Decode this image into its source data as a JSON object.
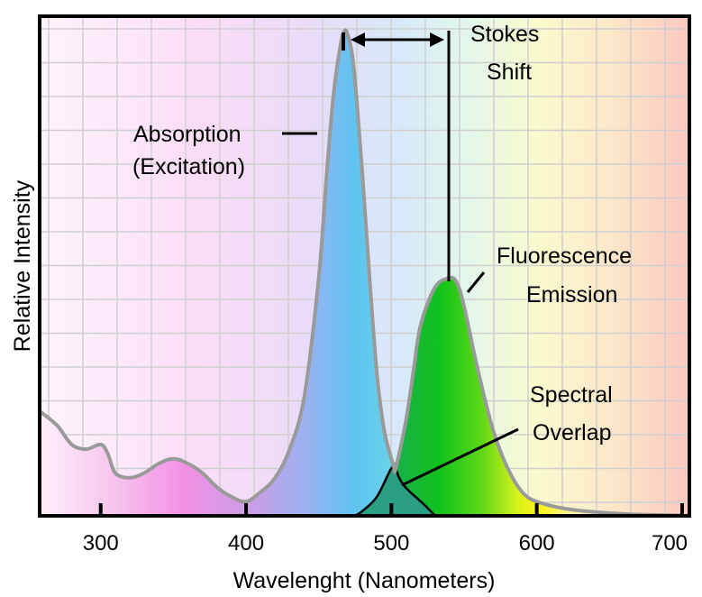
{
  "chart_data": {
    "type": "area",
    "title": "",
    "xlabel": "Wavelenght (Nanometers)",
    "ylabel": "Relative Intensity",
    "xlim": [
      258,
      705
    ],
    "ylim": [
      0,
      1.05
    ],
    "xticks": [
      300,
      400,
      500,
      600,
      700
    ],
    "grid": true,
    "series": [
      {
        "name": "Absorption (Excitation)",
        "x": [
          258,
          270,
          280,
          290,
          300,
          305,
          310,
          320,
          330,
          340,
          350,
          360,
          370,
          380,
          390,
          400,
          410,
          420,
          430,
          440,
          450,
          455,
          460,
          465,
          468,
          470,
          473,
          476,
          480,
          485,
          490,
          495,
          500,
          502,
          505
        ],
        "y": [
          0.22,
          0.19,
          0.15,
          0.14,
          0.15,
          0.13,
          0.09,
          0.08,
          0.09,
          0.11,
          0.12,
          0.11,
          0.09,
          0.06,
          0.04,
          0.03,
          0.05,
          0.08,
          0.14,
          0.25,
          0.5,
          0.7,
          0.88,
          0.99,
          1.02,
          1.01,
          0.97,
          0.88,
          0.72,
          0.5,
          0.3,
          0.18,
          0.12,
          0.1,
          0.11
        ]
      },
      {
        "name": "Fluorescence Emission",
        "x": [
          475,
          480,
          490,
          500,
          505,
          510,
          515,
          520,
          530,
          540,
          545,
          550,
          560,
          570,
          580,
          590,
          600,
          620,
          640,
          660,
          680,
          700
        ],
        "y": [
          0,
          0.01,
          0.04,
          0.1,
          0.13,
          0.2,
          0.3,
          0.4,
          0.48,
          0.5,
          0.49,
          0.44,
          0.3,
          0.18,
          0.1,
          0.05,
          0.03,
          0.015,
          0.008,
          0.004,
          0.002,
          0.001
        ]
      }
    ],
    "annotations": [
      {
        "text": "Absorption",
        "target": "Absorption (Excitation)"
      },
      {
        "text": "(Excitation)",
        "target": "Absorption (Excitation)"
      },
      {
        "text": "Stokes",
        "target": "Stokes Shift"
      },
      {
        "text": "Shift",
        "target": "Stokes Shift"
      },
      {
        "text": "Fluorescence",
        "target": "Fluorescence Emission"
      },
      {
        "text": "Emission",
        "target": "Fluorescence Emission"
      },
      {
        "text": "Spectral",
        "target": "Spectral Overlap"
      },
      {
        "text": "Overlap",
        "target": "Spectral Overlap"
      }
    ],
    "stokes_shift": {
      "from": 468,
      "to": 540
    },
    "spectral_overlap_peak": 503
  }
}
